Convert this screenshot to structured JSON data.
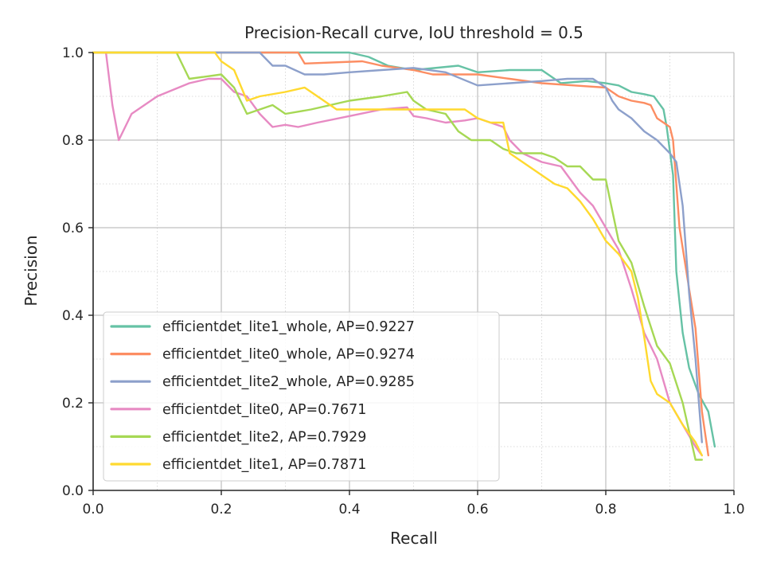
{
  "chart_data": {
    "type": "line",
    "title": "Precision-Recall curve, IoU threshold = 0.5",
    "xlabel": "Recall",
    "ylabel": "Precision",
    "xlim": [
      0.0,
      1.0
    ],
    "ylim": [
      0.0,
      1.0
    ],
    "xticks": [
      "0.0",
      "0.2",
      "0.4",
      "0.6",
      "0.8",
      "1.0"
    ],
    "yticks": [
      "0.0",
      "0.2",
      "0.4",
      "0.6",
      "0.8",
      "1.0"
    ],
    "grid": "major solid, minor dotted",
    "legend_position": "lower-left",
    "series": [
      {
        "name": "efficientdet_lite1_whole, AP=0.9227",
        "color": "#66c2a5",
        "x": [
          0.0,
          0.4,
          0.43,
          0.46,
          0.5,
          0.57,
          0.6,
          0.65,
          0.7,
          0.73,
          0.77,
          0.8,
          0.82,
          0.84,
          0.86,
          0.875,
          0.89,
          0.895,
          0.905,
          0.91,
          0.92,
          0.93,
          0.945,
          0.96,
          0.97
        ],
        "y": [
          1.0,
          1.0,
          0.99,
          0.97,
          0.96,
          0.97,
          0.955,
          0.96,
          0.96,
          0.93,
          0.935,
          0.93,
          0.925,
          0.91,
          0.905,
          0.9,
          0.87,
          0.83,
          0.72,
          0.5,
          0.36,
          0.28,
          0.22,
          0.18,
          0.1
        ]
      },
      {
        "name": "efficientdet_lite0_whole, AP=0.9274",
        "color": "#fc8d62",
        "x": [
          0.0,
          0.32,
          0.33,
          0.42,
          0.45,
          0.5,
          0.53,
          0.6,
          0.65,
          0.7,
          0.75,
          0.8,
          0.82,
          0.84,
          0.86,
          0.87,
          0.88,
          0.89,
          0.9,
          0.905,
          0.915,
          0.93,
          0.94,
          0.95,
          0.96
        ],
        "y": [
          1.0,
          1.0,
          0.975,
          0.98,
          0.97,
          0.96,
          0.95,
          0.95,
          0.94,
          0.93,
          0.925,
          0.92,
          0.9,
          0.89,
          0.885,
          0.88,
          0.85,
          0.84,
          0.83,
          0.8,
          0.6,
          0.46,
          0.37,
          0.18,
          0.08
        ]
      },
      {
        "name": "efficientdet_lite2_whole, AP=0.9285",
        "color": "#8da0cb",
        "x": [
          0.0,
          0.26,
          0.28,
          0.3,
          0.33,
          0.36,
          0.4,
          0.45,
          0.5,
          0.55,
          0.6,
          0.65,
          0.7,
          0.74,
          0.78,
          0.8,
          0.81,
          0.82,
          0.84,
          0.86,
          0.88,
          0.9,
          0.91,
          0.92,
          0.93,
          0.94,
          0.95
        ],
        "y": [
          1.0,
          1.0,
          0.97,
          0.97,
          0.95,
          0.95,
          0.955,
          0.96,
          0.965,
          0.955,
          0.925,
          0.93,
          0.935,
          0.94,
          0.94,
          0.92,
          0.89,
          0.87,
          0.85,
          0.82,
          0.8,
          0.77,
          0.75,
          0.65,
          0.45,
          0.3,
          0.11
        ]
      },
      {
        "name": "efficientdet_lite0, AP=0.7671",
        "color": "#e78ac3",
        "x": [
          0.0,
          0.02,
          0.03,
          0.04,
          0.06,
          0.1,
          0.15,
          0.18,
          0.2,
          0.22,
          0.24,
          0.26,
          0.28,
          0.3,
          0.32,
          0.35,
          0.4,
          0.45,
          0.49,
          0.5,
          0.52,
          0.55,
          0.58,
          0.6,
          0.62,
          0.64,
          0.65,
          0.67,
          0.7,
          0.73,
          0.76,
          0.78,
          0.8,
          0.82,
          0.84,
          0.86,
          0.88,
          0.9,
          0.92,
          0.94,
          0.95
        ],
        "y": [
          1.0,
          1.0,
          0.88,
          0.8,
          0.86,
          0.9,
          0.93,
          0.94,
          0.94,
          0.91,
          0.9,
          0.86,
          0.83,
          0.835,
          0.83,
          0.84,
          0.855,
          0.87,
          0.875,
          0.855,
          0.85,
          0.84,
          0.845,
          0.85,
          0.84,
          0.83,
          0.8,
          0.77,
          0.75,
          0.74,
          0.68,
          0.65,
          0.6,
          0.55,
          0.46,
          0.36,
          0.3,
          0.2,
          0.15,
          0.1,
          0.08
        ]
      },
      {
        "name": "efficientdet_lite2, AP=0.7929",
        "color": "#a6d854",
        "x": [
          0.0,
          0.13,
          0.15,
          0.2,
          0.22,
          0.24,
          0.28,
          0.3,
          0.34,
          0.4,
          0.45,
          0.49,
          0.5,
          0.52,
          0.55,
          0.57,
          0.59,
          0.6,
          0.62,
          0.64,
          0.66,
          0.7,
          0.72,
          0.74,
          0.76,
          0.78,
          0.8,
          0.82,
          0.84,
          0.86,
          0.88,
          0.9,
          0.92,
          0.94,
          0.95
        ],
        "y": [
          1.0,
          1.0,
          0.94,
          0.95,
          0.92,
          0.86,
          0.88,
          0.86,
          0.87,
          0.89,
          0.9,
          0.91,
          0.89,
          0.87,
          0.86,
          0.82,
          0.8,
          0.8,
          0.8,
          0.78,
          0.77,
          0.77,
          0.76,
          0.74,
          0.74,
          0.71,
          0.71,
          0.57,
          0.52,
          0.42,
          0.33,
          0.29,
          0.2,
          0.07,
          0.07
        ]
      },
      {
        "name": "efficientdet_lite1, AP=0.7871",
        "color": "#ffd92f",
        "x": [
          0.0,
          0.19,
          0.2,
          0.22,
          0.24,
          0.26,
          0.3,
          0.33,
          0.36,
          0.38,
          0.4,
          0.44,
          0.47,
          0.5,
          0.53,
          0.56,
          0.58,
          0.6,
          0.62,
          0.64,
          0.65,
          0.67,
          0.7,
          0.72,
          0.74,
          0.76,
          0.78,
          0.8,
          0.82,
          0.84,
          0.85,
          0.86,
          0.87,
          0.88,
          0.9,
          0.92,
          0.94,
          0.95
        ],
        "y": [
          1.0,
          1.0,
          0.98,
          0.96,
          0.89,
          0.9,
          0.91,
          0.92,
          0.89,
          0.87,
          0.87,
          0.87,
          0.87,
          0.87,
          0.87,
          0.87,
          0.87,
          0.85,
          0.84,
          0.84,
          0.77,
          0.75,
          0.72,
          0.7,
          0.69,
          0.66,
          0.62,
          0.57,
          0.54,
          0.5,
          0.44,
          0.35,
          0.25,
          0.22,
          0.2,
          0.15,
          0.11,
          0.08
        ]
      }
    ]
  }
}
